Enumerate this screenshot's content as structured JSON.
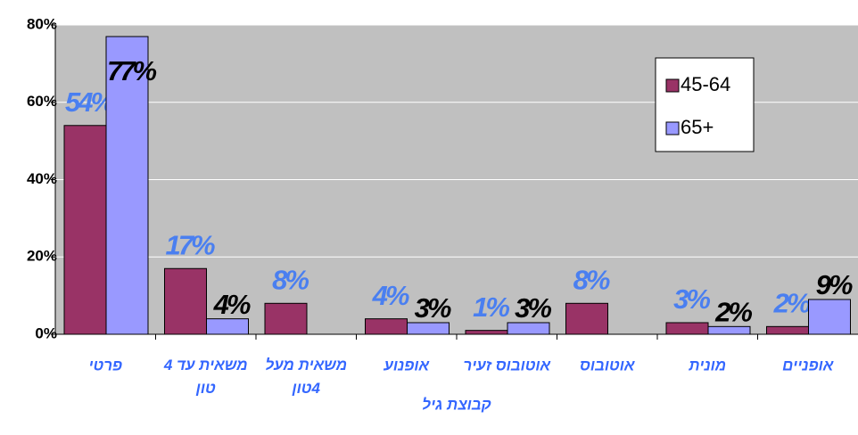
{
  "chart_data": {
    "type": "bar",
    "categories": [
      "פרטי",
      "משאית עד 4 טון",
      "משאית מעל 4טון",
      "אופנוע",
      "אוטובוס זעיר",
      "אוטובוס",
      "מונית",
      "אופניים"
    ],
    "series": [
      {
        "name": "45-64",
        "color": "#993366",
        "values": [
          54,
          17,
          8,
          4,
          1,
          8,
          3,
          2
        ],
        "value_labels": [
          "54%",
          "17%",
          "8%",
          "4%",
          "1%",
          "8%",
          "3%",
          "2%"
        ]
      },
      {
        "name": "65+",
        "color": "#9999ff",
        "values": [
          77,
          4,
          null,
          3,
          3,
          null,
          2,
          9
        ],
        "value_labels": [
          "77%",
          "4%",
          null,
          "3%",
          "3%",
          null,
          "2%",
          "9%"
        ]
      }
    ],
    "x_label": "קבוצת גיל",
    "ylim": [
      0,
      80
    ],
    "yticks": [
      {
        "value": 0,
        "label": "0%"
      },
      {
        "value": 20,
        "label": "20%"
      },
      {
        "value": 40,
        "label": "40%"
      },
      {
        "value": 60,
        "label": "60%"
      },
      {
        "value": 80,
        "label": "80%"
      }
    ],
    "grid": true,
    "legend": "upper right"
  }
}
